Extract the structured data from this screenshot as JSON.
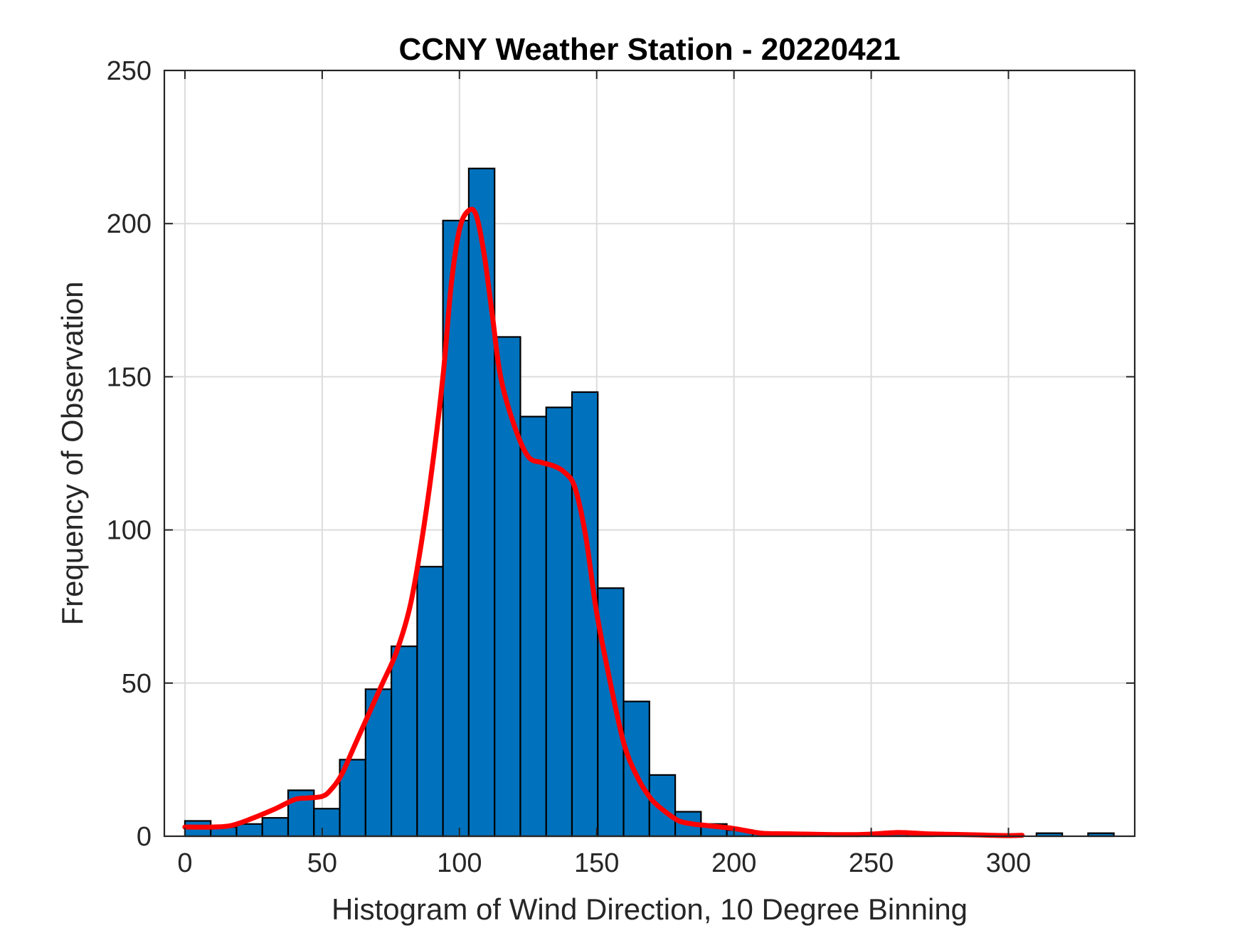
{
  "chart_data": {
    "type": "bar",
    "title": "CCNY Weather Station - 20220421",
    "xlabel": "Histogram of Wind Direction, 10 Degree Binning",
    "ylabel": "Frequency of Observation",
    "xlim": [
      -7.5,
      346
    ],
    "ylim": [
      0,
      250
    ],
    "xticks": [
      0,
      50,
      100,
      150,
      200,
      250,
      300
    ],
    "yticks": [
      0,
      50,
      100,
      150,
      200,
      250
    ],
    "grid": true,
    "bin_width": 9.4,
    "bins": [
      {
        "x0": 0,
        "value": 5
      },
      {
        "x0": 9.4,
        "value": 3
      },
      {
        "x0": 18.8,
        "value": 4
      },
      {
        "x0": 28.2,
        "value": 6
      },
      {
        "x0": 37.6,
        "value": 15
      },
      {
        "x0": 47,
        "value": 9
      },
      {
        "x0": 56.4,
        "value": 25
      },
      {
        "x0": 65.8,
        "value": 48
      },
      {
        "x0": 75.2,
        "value": 62
      },
      {
        "x0": 84.6,
        "value": 88
      },
      {
        "x0": 94,
        "value": 201
      },
      {
        "x0": 103.4,
        "value": 218
      },
      {
        "x0": 112.8,
        "value": 163
      },
      {
        "x0": 122.2,
        "value": 137
      },
      {
        "x0": 131.6,
        "value": 140
      },
      {
        "x0": 141,
        "value": 145
      },
      {
        "x0": 150.4,
        "value": 81
      },
      {
        "x0": 159.8,
        "value": 44
      },
      {
        "x0": 169.2,
        "value": 20
      },
      {
        "x0": 178.6,
        "value": 8
      },
      {
        "x0": 188,
        "value": 4
      },
      {
        "x0": 197.4,
        "value": 2
      },
      {
        "x0": 206.8,
        "value": 1
      },
      {
        "x0": 216.2,
        "value": 1
      },
      {
        "x0": 225.6,
        "value": 1
      },
      {
        "x0": 235,
        "value": 0
      },
      {
        "x0": 244.4,
        "value": 1
      },
      {
        "x0": 253.8,
        "value": 1
      },
      {
        "x0": 263.2,
        "value": 1
      },
      {
        "x0": 272.6,
        "value": 0
      },
      {
        "x0": 282,
        "value": 0
      },
      {
        "x0": 291.4,
        "value": 0
      },
      {
        "x0": 300.8,
        "value": 0
      },
      {
        "x0": 310.2,
        "value": 1
      },
      {
        "x0": 319.6,
        "value": 0
      },
      {
        "x0": 329,
        "value": 1
      }
    ],
    "series": [
      {
        "type": "line",
        "x": [
          0,
          10,
          17,
          25,
          33,
          40,
          45,
          50,
          53,
          57,
          62,
          67,
          72,
          77,
          82,
          86,
          90,
          94,
          97,
          100,
          103,
          106,
          109,
          112,
          115,
          120,
          125,
          130,
          134,
          138,
          142,
          146,
          150,
          155,
          160,
          165,
          170,
          175,
          180,
          185,
          190,
          200,
          210,
          220,
          240,
          250,
          260,
          270,
          280,
          290,
          300,
          305
        ],
        "y": [
          3,
          3,
          3.5,
          6,
          9,
          12,
          12.5,
          13,
          15,
          20,
          30,
          40,
          50,
          60,
          75,
          95,
          120,
          150,
          180,
          198,
          204,
          203,
          190,
          170,
          150,
          134,
          124,
          122,
          121,
          119,
          114,
          98,
          73,
          50,
          30,
          19,
          12,
          8,
          5,
          4,
          3.5,
          2.5,
          1,
          0.8,
          0.5,
          0.7,
          1.2,
          0.8,
          0.6,
          0.4,
          0.2,
          0.3
        ]
      }
    ],
    "colors": {
      "bar": "#0072BD",
      "bar_edge": "#000000",
      "line": "#FF0000",
      "grid": "#DCDCDC",
      "axis": "#262626"
    }
  }
}
